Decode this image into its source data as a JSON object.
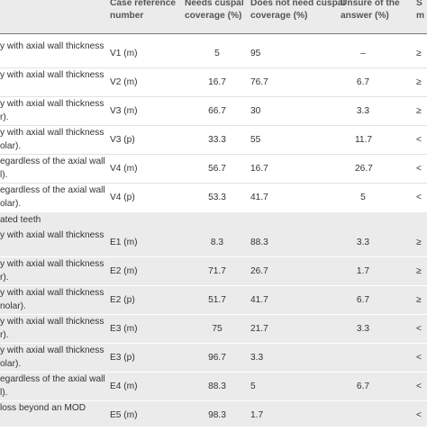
{
  "header": {
    "col_blank": "",
    "col_ref_1": "Case reference",
    "col_ref_2": "number",
    "col_need_1": "Needs cuspal",
    "col_need_2": "coverage (%)",
    "col_noneed_1": "Does not need cuspal",
    "col_noneed_2": "coverage (%)",
    "col_unsure_1": "Unsure of the",
    "col_unsure_2": "answer (%)",
    "col_last_1": "S",
    "col_last_2": "m"
  },
  "section_label": "ated teeth",
  "rows": [
    {
      "d1": "y with axial wall thickness",
      "d2": "",
      "ref": "V1 (m)",
      "need": "5",
      "noneed": "95",
      "unsure": "–",
      "last": "≥"
    },
    {
      "d1": "y with axial wall thickness",
      "d2": "",
      "ref": "V2 (m)",
      "need": "16.7",
      "noneed": "76.7",
      "unsure": "6.7",
      "last": "≥"
    },
    {
      "d1": "y with axial wall thickness",
      "d2": "r).",
      "ref": "V3 (m)",
      "need": "66.7",
      "noneed": "30",
      "unsure": "3.3",
      "last": "≥"
    },
    {
      "d1": "y with axial wall thickness",
      "d2": "olar).",
      "ref": "V3 (p)",
      "need": "33.3",
      "noneed": "55",
      "unsure": "11.7",
      "last": "<"
    },
    {
      "d1": "egardless of the axial wall",
      "d2": "l).",
      "ref": "V4 (m)",
      "need": "56.7",
      "noneed": "16.7",
      "unsure": "26.7",
      "last": "<"
    },
    {
      "d1": "egardless of the axial wall",
      "d2": "olar).",
      "ref": "V4 (p)",
      "need": "53.3",
      "noneed": "41.7",
      "unsure": "5",
      "last": "<"
    },
    {
      "d1": "y with axial wall thickness",
      "d2": "",
      "ref": "E1 (m)",
      "need": "8.3",
      "noneed": "88.3",
      "unsure": "3.3",
      "last": "≥"
    },
    {
      "d1": "y with axial wall thickness",
      "d2": "r).",
      "ref": "E2 (m)",
      "need": "71.7",
      "noneed": "26.7",
      "unsure": "1.7",
      "last": "≥"
    },
    {
      "d1": "y with axial wall thickness",
      "d2": "nolar).",
      "ref": "E2 (p)",
      "need": "51.7",
      "noneed": "41.7",
      "unsure": "6.7",
      "last": "≥"
    },
    {
      "d1": "y with axial wall thickness",
      "d2": "r).",
      "ref": "E3 (m)",
      "need": "75",
      "noneed": "21.7",
      "unsure": "3.3",
      "last": "<"
    },
    {
      "d1": "y with axial wall thickness",
      "d2": "olar).",
      "ref": "E3 (p)",
      "need": "96.7",
      "noneed": "3.3",
      "unsure": "",
      "last": "<"
    },
    {
      "d1": "egardless of the axial wall",
      "d2": "l).",
      "ref": "E4 (m)",
      "need": "88.3",
      "noneed": "5",
      "unsure": "6.7",
      "last": "<"
    },
    {
      "d1": "loss beyond an MOD",
      "d2": "",
      "ref": "E5 (m)",
      "need": "98.3",
      "noneed": "1.7",
      "unsure": "",
      "last": "<"
    }
  ]
}
